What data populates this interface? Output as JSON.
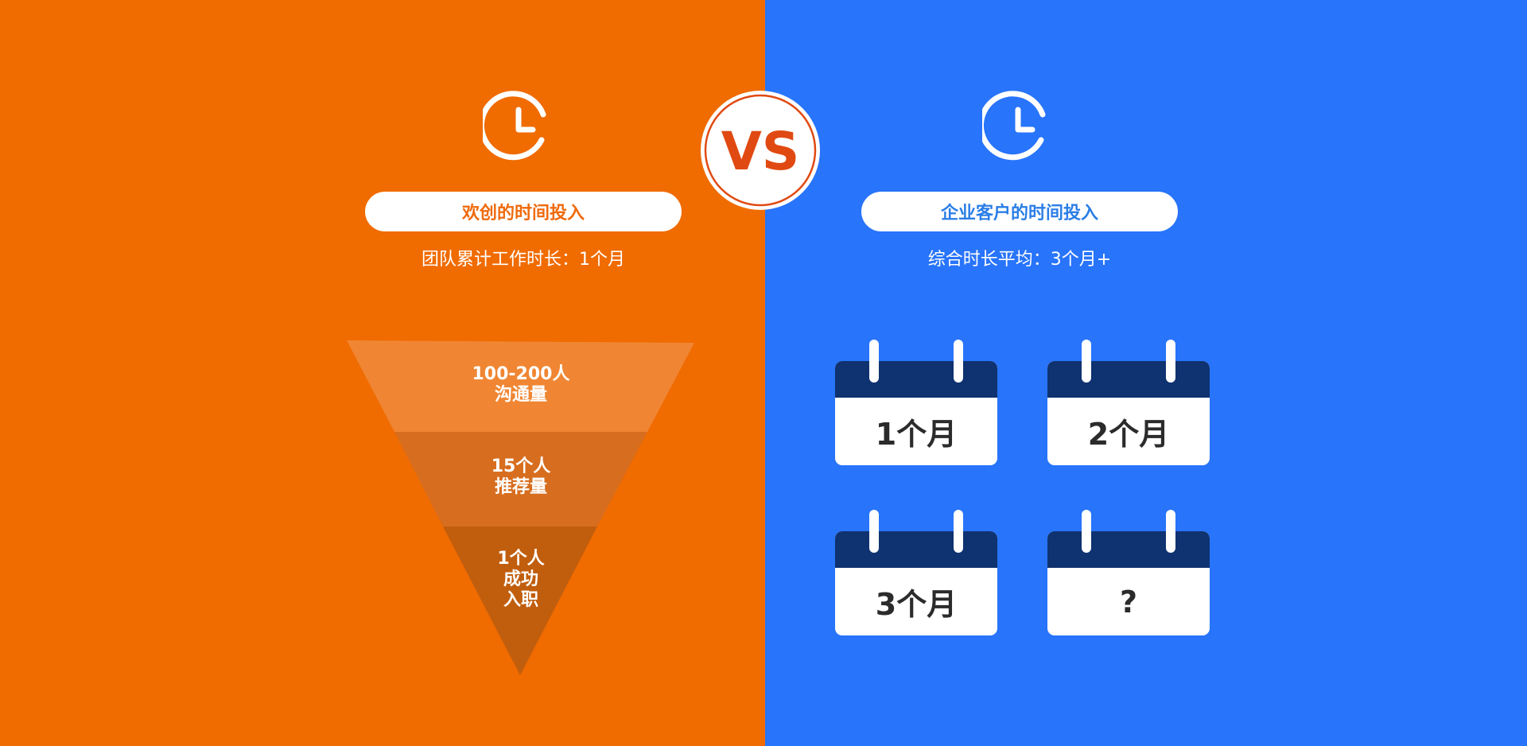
{
  "colors": {
    "left_bg": "#F06B00",
    "right_bg": "#2874FA",
    "left_accent": "#EF6A0C",
    "right_accent": "#2B7EE6",
    "funnel_top": "#F08633",
    "funnel_mid": "#D76D1E",
    "funnel_bottom": "#C15E0E",
    "calendar_band": "#0F3270",
    "vs_red": "#E04A12"
  },
  "vs_badge": {
    "text": "VS"
  },
  "left": {
    "clock_icon": "clock-icon",
    "title": "欢创的时间投入",
    "subtitle": "团队累计工作时长：1个月",
    "funnel": [
      {
        "line1": "100-200人",
        "line2": "沟通量",
        "line3": ""
      },
      {
        "line1": "15个人",
        "line2": "推荐量",
        "line3": ""
      },
      {
        "line1": "1个人",
        "line2": "成功",
        "line3": "入职"
      }
    ]
  },
  "right": {
    "clock_icon": "clock-icon",
    "title": "企业客户的时间投入",
    "subtitle": "综合时长平均：3个月+",
    "calendars": [
      {
        "label": "1个月"
      },
      {
        "label": "2个月"
      },
      {
        "label": "3个月"
      },
      {
        "label": "?"
      }
    ]
  }
}
